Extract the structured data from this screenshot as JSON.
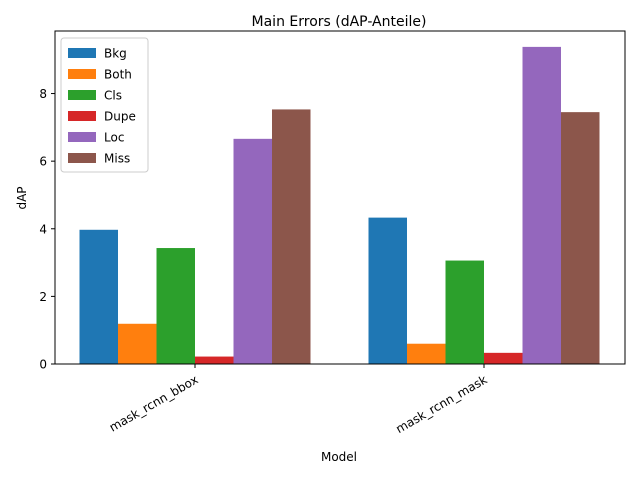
{
  "chart_data": {
    "type": "bar",
    "title": "Main Errors (dAP-Anteile)",
    "xlabel": "Model",
    "ylabel": "dAP",
    "categories": [
      "mask_rcnn_bbox",
      "mask_rcnn_mask"
    ],
    "ylim": [
      0,
      9.85
    ],
    "yticks": [
      0,
      2,
      4,
      6,
      8
    ],
    "grid": false,
    "legend_position": "top-left",
    "series": [
      {
        "name": "Bkg",
        "color": "#1f77b4",
        "values": [
          3.97,
          4.33
        ]
      },
      {
        "name": "Both",
        "color": "#ff7f0e",
        "values": [
          1.19,
          0.6
        ]
      },
      {
        "name": "Cls",
        "color": "#2ca02c",
        "values": [
          3.43,
          3.06
        ]
      },
      {
        "name": "Dupe",
        "color": "#d62728",
        "values": [
          0.22,
          0.33
        ]
      },
      {
        "name": "Loc",
        "color": "#9467bd",
        "values": [
          6.66,
          9.38
        ]
      },
      {
        "name": "Miss",
        "color": "#8c564b",
        "values": [
          7.53,
          7.45
        ]
      }
    ]
  }
}
